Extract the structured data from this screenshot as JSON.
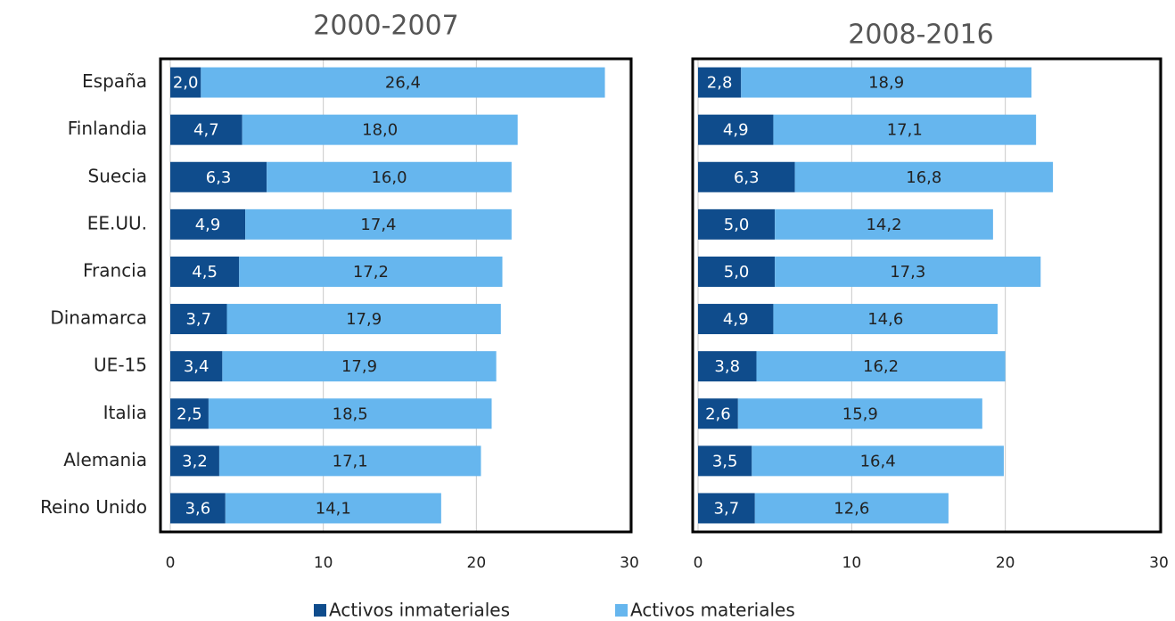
{
  "chart_data": [
    {
      "type": "stacked-bar-horizontal",
      "title": "2000-2007",
      "categories": [
        "España",
        "Finlandia",
        "Suecia",
        "EE.UU.",
        "Francia",
        "Dinamarca",
        "UE-15",
        "Italia",
        "Alemania",
        "Reino Unido"
      ],
      "series": [
        {
          "name": "Activos inmateriales",
          "color": "#0f4c8c",
          "values": [
            2.0,
            4.7,
            6.3,
            4.9,
            4.5,
            3.7,
            3.4,
            2.5,
            3.2,
            3.6
          ],
          "value_labels": [
            "2,0",
            "4,7",
            "6,3",
            "4,9",
            "4,5",
            "3,7",
            "3,4",
            "2,5",
            "3,2",
            "3,6"
          ]
        },
        {
          "name": "Activos materiales",
          "color": "#66b6ee",
          "values": [
            26.4,
            18.0,
            16.0,
            17.4,
            17.2,
            17.9,
            17.9,
            18.5,
            17.1,
            14.1
          ],
          "value_labels": [
            "26,4",
            "18,0",
            "16,0",
            "17,4",
            "17,2",
            "17,9",
            "17,9",
            "18,5",
            "17,1",
            "14,1"
          ]
        }
      ],
      "xlim": [
        0,
        30
      ],
      "xticks": [
        0,
        10,
        20,
        30
      ],
      "grid": true
    },
    {
      "type": "stacked-bar-horizontal",
      "title": "2008-2016",
      "series": [
        {
          "color": "#0f4c8c",
          "values": [
            2.8,
            4.9,
            6.3,
            5.0,
            5.0,
            4.9,
            3.8,
            2.6,
            3.5,
            3.7
          ],
          "value_labels": [
            "2,8",
            "4,9",
            "6,3",
            "5,0",
            "5,0",
            "4,9",
            "3,8",
            "2,6",
            "3,5",
            "3,7"
          ]
        },
        {
          "color": "#66b6ee",
          "values": [
            18.9,
            17.1,
            16.8,
            14.2,
            17.3,
            14.6,
            16.2,
            15.9,
            16.4,
            12.6
          ],
          "value_labels": [
            "18,9",
            "17,1",
            "16,8",
            "14,2",
            "17,3",
            "14,6",
            "16,2",
            "15,9",
            "16,4",
            "12,6"
          ]
        }
      ],
      "xlim": [
        0,
        30
      ],
      "xticks": [
        0,
        10,
        20,
        30
      ],
      "grid": true
    }
  ]
}
